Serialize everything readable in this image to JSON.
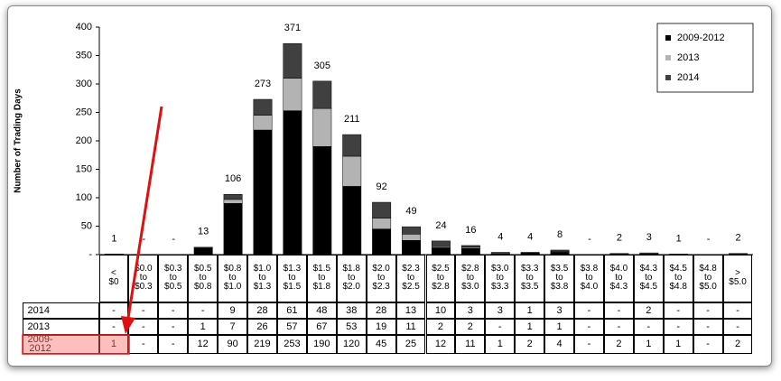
{
  "chart_data": {
    "type": "stacked_bar",
    "ylabel": "Number of Trading Days",
    "categories": [
      "< $0",
      "$0.0 to $0.3",
      "$0.3 to $0.5",
      "$0.5 to $0.8",
      "$0.8 to $1.0",
      "$1.0 to $1.3",
      "$1.3 to $1.5",
      "$1.5 to $1.8",
      "$1.8 to $2.0",
      "$2.0 to $2.3",
      "$2.3 to $2.5",
      "$2.5 to $2.8",
      "$2.8 to $3.0",
      "$3.0 to $3.3",
      "$3.3 to $3.5",
      "$3.5 to $3.8",
      "$3.8 to $4.0",
      "$4.0 to $4.3",
      "$4.3 to $4.5",
      "$4.5 to $4.8",
      "$4.8 to $5.0",
      "> $5.0"
    ],
    "series": [
      {
        "name": "2014",
        "color": "#404040",
        "values": [
          0,
          0,
          0,
          0,
          9,
          28,
          61,
          48,
          38,
          28,
          13,
          10,
          3,
          3,
          1,
          3,
          0,
          0,
          2,
          0,
          0,
          0
        ],
        "value_labels": [
          "-",
          "-",
          "-",
          "-",
          "9",
          "28",
          "61",
          "48",
          "38",
          "28",
          "13",
          "10",
          "3",
          "3",
          "1",
          "3",
          "-",
          "-",
          "2",
          "-",
          "-",
          "-"
        ]
      },
      {
        "name": "2013",
        "color": "#b3b3b3",
        "values": [
          0,
          0,
          0,
          1,
          7,
          26,
          57,
          67,
          53,
          19,
          11,
          2,
          2,
          0,
          1,
          1,
          0,
          0,
          0,
          0,
          0,
          0
        ],
        "value_labels": [
          "-",
          "-",
          "-",
          "1",
          "7",
          "26",
          "57",
          "67",
          "53",
          "19",
          "11",
          "2",
          "2",
          "-",
          "1",
          "1",
          "-",
          "-",
          "-",
          "-",
          "-",
          "-"
        ]
      },
      {
        "name": "2009-2012",
        "color": "#000000",
        "values": [
          1,
          0,
          0,
          12,
          90,
          219,
          253,
          190,
          120,
          45,
          25,
          12,
          11,
          1,
          2,
          4,
          0,
          2,
          1,
          1,
          0,
          2
        ],
        "value_labels": [
          "1",
          "-",
          "-",
          "12",
          "90",
          "219",
          "253",
          "190",
          "120",
          "45",
          "25",
          "12",
          "11",
          "1",
          "2",
          "4",
          "-",
          "2",
          "1",
          "1",
          "-",
          "2"
        ]
      }
    ],
    "totals": [
      1,
      0,
      0,
      13,
      106,
      273,
      371,
      305,
      211,
      92,
      49,
      24,
      16,
      4,
      4,
      8,
      0,
      2,
      3,
      1,
      0,
      2
    ],
    "total_labels": [
      "1",
      "-",
      "-",
      "13",
      "106",
      "273",
      "371",
      "305",
      "211",
      "92",
      "49",
      "24",
      "16",
      "4",
      "4",
      "8",
      "-",
      "2",
      "3",
      "1",
      "-",
      "2"
    ],
    "ylim": [
      0,
      400
    ],
    "yticks": [
      {
        "value": 0,
        "label": "-"
      },
      50,
      100,
      150,
      200,
      250,
      300,
      350,
      400
    ],
    "legend": "top-right"
  }
}
